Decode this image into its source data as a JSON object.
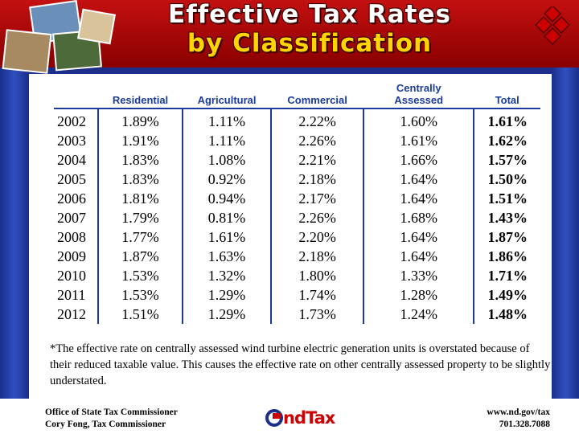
{
  "header": {
    "title": "Effective Tax Rates",
    "subtitle": "by Classification"
  },
  "table": {
    "columns": [
      "",
      "Residential",
      "Agricultural",
      "Commercial",
      "Centrally Assessed",
      "Total"
    ],
    "rows": [
      [
        "2002",
        "1.89%",
        "1.11%",
        "2.22%",
        "1.60%",
        "1.61%"
      ],
      [
        "2003",
        "1.91%",
        "1.11%",
        "2.26%",
        "1.61%",
        "1.62%"
      ],
      [
        "2004",
        "1.83%",
        "1.08%",
        "2.21%",
        "1.66%",
        "1.57%"
      ],
      [
        "2005",
        "1.83%",
        "0.92%",
        "2.18%",
        "1.64%",
        "1.50%"
      ],
      [
        "2006",
        "1.81%",
        "0.94%",
        "2.17%",
        "1.64%",
        "1.51%"
      ],
      [
        "2007",
        "1.79%",
        "0.81%",
        "2.26%",
        "1.68%",
        "1.43%"
      ],
      [
        "2008",
        "1.77%",
        "1.61%",
        "2.20%",
        "1.64%",
        "1.87%"
      ],
      [
        "2009",
        "1.87%",
        "1.63%",
        "2.18%",
        "1.64%",
        "1.86%"
      ],
      [
        "2010",
        "1.53%",
        "1.32%",
        "1.80%",
        "1.33%",
        "1.71%"
      ],
      [
        "2011",
        "1.53%",
        "1.29%",
        "1.74%",
        "1.28%",
        "1.49%"
      ],
      [
        "2012",
        "1.51%",
        "1.29%",
        "1.73%",
        "1.24%",
        "1.48%"
      ]
    ]
  },
  "footnote": "*The effective rate on centrally assessed wind turbine electric generation units is overstated because of their reduced taxable value.  This causes the effective rate on other centrally assessed property to be slightly understated.",
  "footer": {
    "office": "Office of State Tax Commissioner",
    "commissioner": "Cory Fong, Tax Commissioner",
    "logo": "ndTax",
    "website": "www.nd.gov/tax",
    "phone": "701.328.7088"
  }
}
